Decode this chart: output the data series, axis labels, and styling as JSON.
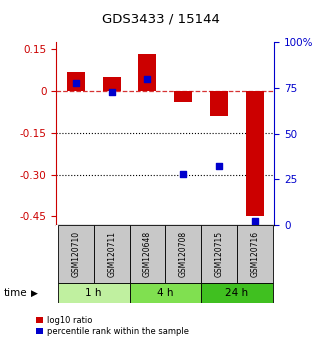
{
  "title": "GDS3433 / 15144",
  "samples": [
    "GSM120710",
    "GSM120711",
    "GSM120648",
    "GSM120708",
    "GSM120715",
    "GSM120716"
  ],
  "log10_ratio": [
    0.07,
    0.05,
    0.135,
    -0.04,
    -0.09,
    -0.45
  ],
  "percentile_rank": [
    78,
    73,
    80,
    28,
    32,
    2
  ],
  "time_groups": [
    {
      "label": "1 h",
      "indices": [
        0,
        1
      ],
      "color": "#c0f0a0"
    },
    {
      "label": "4 h",
      "indices": [
        2,
        3
      ],
      "color": "#80e050"
    },
    {
      "label": "24 h",
      "indices": [
        4,
        5
      ],
      "color": "#40c020"
    }
  ],
  "ylim_left": [
    -0.48,
    0.175
  ],
  "ylim_right": [
    0,
    100
  ],
  "yticks_left": [
    0.15,
    0.0,
    -0.15,
    -0.3,
    -0.45
  ],
  "yticks_right": [
    100,
    75,
    50,
    25,
    0
  ],
  "bar_color": "#cc0000",
  "dot_color": "#0000cc",
  "bar_width": 0.5,
  "dot_size": 25,
  "background_color": "#ffffff",
  "sample_bg_color": "#c8c8c8"
}
